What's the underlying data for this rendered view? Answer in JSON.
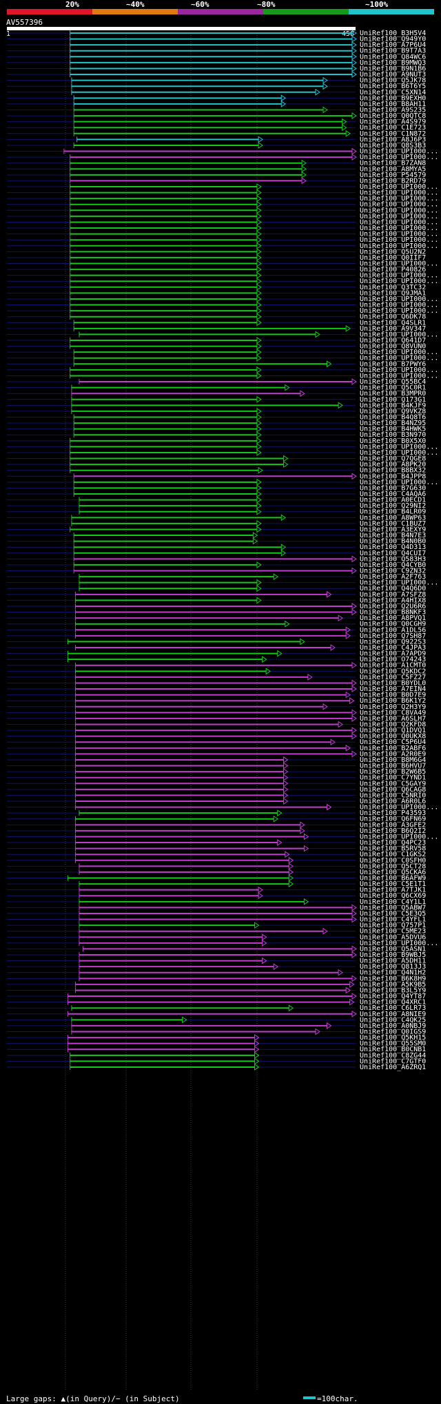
{
  "legend": {
    "labels": [
      "20%",
      "~40%",
      "~60%",
      "~80%",
      "~100%"
    ],
    "colors": [
      "#e01628",
      "#e07a10",
      "#9b27a0",
      "#159a1a",
      "#22c4cc"
    ]
  },
  "query": {
    "name": "AV557396",
    "start": "1",
    "end": "458"
  },
  "footer": {
    "gaps_text": "Large gaps: ▲(in Query)/− (in Subject)",
    "scale_text": "=100char."
  },
  "chart_data": {
    "type": "alignment-overview",
    "query_length": 458,
    "colors": {
      "cyan": "#22c4cc",
      "green": "#16c81a",
      "magenta": "#c23ccf"
    },
    "hits": [
      [
        "UniRef100_B3H5V4",
        "cyan",
        83,
        458
      ],
      [
        "UniRef100_Q949Y0",
        "cyan",
        83,
        458
      ],
      [
        "UniRef100_A7P6U4",
        "cyan",
        83,
        458
      ],
      [
        "UniRef100_B9T7A3",
        "cyan",
        83,
        458
      ],
      [
        "UniRef100_Q84WC6",
        "cyan",
        83,
        458
      ],
      [
        "UniRef100_B9MWQ3",
        "cyan",
        83,
        458
      ],
      [
        "UniRef100_B9N1B6",
        "cyan",
        83,
        458
      ],
      [
        "UniRef100_A9NUT3",
        "cyan",
        83,
        458
      ],
      [
        "UniRef100_Q5JK78",
        "cyan",
        85,
        420
      ],
      [
        "UniRef100_B6T6Y5",
        "cyan",
        85,
        420
      ],
      [
        "UniRef100_C5XN14",
        "cyan",
        85,
        410
      ],
      [
        "UniRef100_B9EXH0",
        "cyan",
        88,
        365
      ],
      [
        "UniRef100_B8AH11",
        "cyan",
        88,
        365
      ],
      [
        "UniRef100_A9S235",
        "green",
        88,
        420
      ],
      [
        "UniRef100_Q0QTC8",
        "green",
        88,
        458
      ],
      [
        "UniRef100_A4S979",
        "green",
        88,
        445
      ],
      [
        "UniRef100_C1E723",
        "green",
        88,
        445
      ],
      [
        "UniRef100_C1N872",
        "green",
        88,
        450
      ],
      [
        "UniRef100_A8J6P3",
        "cyan",
        92,
        335
      ],
      [
        "UniRef100_Q8S3B3",
        "green",
        88,
        335
      ],
      [
        "UniRef100_UPI000...",
        "magenta",
        75,
        458
      ],
      [
        "UniRef100_UPI000...",
        "magenta",
        83,
        458
      ],
      [
        "UniRef100_B7ZAN8",
        "green",
        83,
        392
      ],
      [
        "UniRef100_A8MYA5",
        "green",
        83,
        392
      ],
      [
        "UniRef100_P54579",
        "green",
        83,
        392
      ],
      [
        "UniRef100_B2RD79",
        "magenta",
        83,
        392
      ],
      [
        "UniRef100_UPI000...",
        "green",
        83,
        333
      ],
      [
        "UniRef100_UPI000...",
        "green",
        83,
        333
      ],
      [
        "UniRef100_UPI000...",
        "green",
        83,
        333
      ],
      [
        "UniRef100_UPI000...",
        "green",
        83,
        333
      ],
      [
        "UniRef100_UPI000...",
        "green",
        83,
        333
      ],
      [
        "UniRef100_UPI000...",
        "green",
        83,
        333
      ],
      [
        "UniRef100_UPI000...",
        "green",
        83,
        333
      ],
      [
        "UniRef100_UPI000...",
        "green",
        83,
        333
      ],
      [
        "UniRef100_UPI000...",
        "green",
        83,
        333
      ],
      [
        "UniRef100_UPI000...",
        "green",
        83,
        333
      ],
      [
        "UniRef100_UPI000...",
        "green",
        83,
        333
      ],
      [
        "UniRef100_Q5U2N2",
        "green",
        83,
        333
      ],
      [
        "UniRef100_Q0IIF7",
        "green",
        83,
        333
      ],
      [
        "UniRef100_UPI000...",
        "green",
        83,
        333
      ],
      [
        "UniRef100_P40826",
        "green",
        83,
        333
      ],
      [
        "UniRef100_UPI000...",
        "green",
        83,
        333
      ],
      [
        "UniRef100_UPI000...",
        "green",
        83,
        333
      ],
      [
        "UniRef100_Q3TC32",
        "green",
        83,
        333
      ],
      [
        "UniRef100_Q9JMA1",
        "green",
        83,
        333
      ],
      [
        "UniRef100_UPI000...",
        "green",
        83,
        333
      ],
      [
        "UniRef100_UPI000...",
        "green",
        83,
        333
      ],
      [
        "UniRef100_UPI000...",
        "green",
        83,
        333
      ],
      [
        "UniRef100_Q6DK78",
        "green",
        83,
        333
      ],
      [
        "UniRef100_Q4SLR1",
        "green",
        88,
        333
      ],
      [
        "UniRef100_A9V347",
        "green",
        88,
        450
      ],
      [
        "UniRef100_UPI000...",
        "green",
        95,
        410
      ],
      [
        "UniRef100_Q641D7",
        "green",
        83,
        333
      ],
      [
        "UniRef100_Q8VUN0",
        "green",
        83,
        333
      ],
      [
        "UniRef100_UPI000...",
        "green",
        88,
        333
      ],
      [
        "UniRef100_UPI000...",
        "green",
        88,
        333
      ],
      [
        "UniRef100_B7PWY6",
        "green",
        88,
        425
      ],
      [
        "UniRef100_UPI000...",
        "green",
        83,
        333
      ],
      [
        "UniRef100_UPI000...",
        "green",
        83,
        333
      ],
      [
        "UniRef100_Q55BC4",
        "magenta",
        95,
        458
      ],
      [
        "UniRef100_Q5C0R1",
        "green",
        85,
        370
      ],
      [
        "UniRef100_B3MPR0",
        "magenta",
        85,
        390
      ],
      [
        "UniRef100_Q173G1",
        "green",
        85,
        333
      ],
      [
        "UniRef100_B4KJF9",
        "green",
        85,
        440
      ],
      [
        "UniRef100_Q9VKZ8",
        "green",
        85,
        333
      ],
      [
        "UniRef100_B4Q8T6",
        "green",
        88,
        333
      ],
      [
        "UniRef100_B4NZ95",
        "green",
        88,
        333
      ],
      [
        "UniRef100_B4HWK5",
        "green",
        88,
        333
      ],
      [
        "UniRef100_B3N970",
        "green",
        88,
        333
      ],
      [
        "UniRef100_B0X5X0",
        "green",
        83,
        333
      ],
      [
        "UniRef100_UPI000...",
        "green",
        83,
        333
      ],
      [
        "UniRef100_UPI000...",
        "green",
        83,
        333
      ],
      [
        "UniRef100_Q7QGE8",
        "green",
        83,
        368
      ],
      [
        "UniRef100_A8PK20",
        "green",
        83,
        368
      ],
      [
        "UniRef100_B8BX32",
        "green",
        83,
        335
      ],
      [
        "UniRef100_B4JPP8",
        "magenta",
        88,
        458
      ],
      [
        "UniRef100_UPI000...",
        "green",
        88,
        333
      ],
      [
        "UniRef100_B7G630",
        "green",
        88,
        333
      ],
      [
        "UniRef100_C4AQA6",
        "green",
        88,
        333
      ],
      [
        "UniRef100_A0ECD1",
        "green",
        95,
        333
      ],
      [
        "UniRef100_Q29NI2",
        "green",
        95,
        333
      ],
      [
        "UniRef100_B4LR09",
        "green",
        95,
        333
      ],
      [
        "UniRef100_A8WP63",
        "green",
        85,
        365
      ],
      [
        "UniRef100_C1BUZ7",
        "green",
        85,
        333
      ],
      [
        "UniRef100_A3EXY9",
        "green",
        83,
        333
      ],
      [
        "UniRef100_B4N7E3",
        "green",
        88,
        328
      ],
      [
        "UniRef100_B4N0B0",
        "green",
        88,
        328
      ],
      [
        "UniRef100_Q4D313",
        "green",
        88,
        365
      ],
      [
        "UniRef100_Q4CUI7",
        "green",
        88,
        365
      ],
      [
        "UniRef100_Q583H3",
        "magenta",
        88,
        458
      ],
      [
        "UniRef100_Q4CYB0",
        "green",
        88,
        333
      ],
      [
        "UniRef100_C9ZN32",
        "magenta",
        88,
        458
      ],
      [
        "UniRef100_A2F763",
        "green",
        95,
        355
      ],
      [
        "UniRef100_UPI000...",
        "green",
        95,
        333
      ],
      [
        "UniRef100_Q4Q6D0",
        "green",
        95,
        333
      ],
      [
        "UniRef100_A7SFZ8",
        "magenta",
        90,
        425
      ],
      [
        "UniRef100_A4HIX8",
        "green",
        90,
        333
      ],
      [
        "UniRef100_Q2U6R6",
        "magenta",
        90,
        458
      ],
      [
        "UniRef100_B8NKF3",
        "magenta",
        90,
        458
      ],
      [
        "UniRef100_A8PVQ1",
        "magenta",
        90,
        440
      ],
      [
        "UniRef100_Q0CGH9",
        "green",
        90,
        370
      ],
      [
        "UniRef100_A1DL56",
        "magenta",
        90,
        450
      ],
      [
        "UniRef100_Q7SH87",
        "magenta",
        90,
        450
      ],
      [
        "UniRef100_Q922S3",
        "green",
        80,
        390
      ],
      [
        "UniRef100_C4JPA3",
        "magenta",
        90,
        430
      ],
      [
        "UniRef100_A7APD9",
        "green",
        80,
        360
      ],
      [
        "UniRef100_O74243",
        "green",
        80,
        340
      ],
      [
        "UniRef100_A1CMT0",
        "magenta",
        90,
        458
      ],
      [
        "UniRef100_Q5KDC2",
        "green",
        90,
        345
      ],
      [
        "UniRef100_C5FZ27",
        "magenta",
        90,
        400
      ],
      [
        "UniRef100_B0YDL0",
        "magenta",
        90,
        458
      ],
      [
        "UniRef100_A7EIN4",
        "magenta",
        90,
        458
      ],
      [
        "UniRef100_B0D7E9",
        "magenta",
        90,
        450
      ],
      [
        "UniRef100_B6K1Y2",
        "magenta",
        90,
        455
      ],
      [
        "UniRef100_Q2H3Y9",
        "magenta",
        90,
        420
      ],
      [
        "UniRef100_C8VA49",
        "magenta",
        90,
        458
      ],
      [
        "UniRef100_A6SLH7",
        "magenta",
        90,
        458
      ],
      [
        "UniRef100_Q2KFD8",
        "magenta",
        90,
        440
      ],
      [
        "UniRef100_Q1DVQ1",
        "magenta",
        90,
        458
      ],
      [
        "UniRef100_Q0UKX8",
        "magenta",
        90,
        458
      ],
      [
        "UniRef100_C5P6U4",
        "magenta",
        90,
        430
      ],
      [
        "UniRef100_B2ABF6",
        "magenta",
        90,
        450
      ],
      [
        "UniRef100_A2R0E9",
        "magenta",
        90,
        458
      ],
      [
        "UniRef100_B8M6G4",
        "magenta",
        90,
        368
      ],
      [
        "UniRef100_B6HVU7",
        "magenta",
        90,
        368
      ],
      [
        "UniRef100_B2W6B5",
        "magenta",
        90,
        368
      ],
      [
        "UniRef100_C7YND1",
        "magenta",
        90,
        368
      ],
      [
        "UniRef100_C5GAY9",
        "magenta",
        90,
        368
      ],
      [
        "UniRef100_Q6CAG8",
        "magenta",
        90,
        368
      ],
      [
        "UniRef100_C5NRI0",
        "magenta",
        90,
        368
      ],
      [
        "UniRef100_A6R0L6",
        "magenta",
        90,
        368
      ],
      [
        "UniRef100_UPI000...",
        "magenta",
        90,
        425
      ],
      [
        "UniRef100_P43593",
        "green",
        95,
        360
      ],
      [
        "UniRef100_Q6FN69",
        "green",
        90,
        355
      ],
      [
        "UniRef100_A3GFE2",
        "magenta",
        90,
        390
      ],
      [
        "UniRef100_B6Q2I2",
        "magenta",
        90,
        390
      ],
      [
        "UniRef100_UPI000...",
        "magenta",
        90,
        395
      ],
      [
        "UniRef100_Q4PC23",
        "magenta",
        90,
        360
      ],
      [
        "UniRef100_B5RV58",
        "magenta",
        90,
        395
      ],
      [
        "UniRef100_C1GKS2",
        "magenta",
        90,
        370
      ],
      [
        "UniRef100_C0SFH0",
        "magenta",
        90,
        375
      ],
      [
        "UniRef100_Q5CT28",
        "magenta",
        95,
        375
      ],
      [
        "UniRef100_Q5CKA6",
        "magenta",
        95,
        375
      ],
      [
        "UniRef100_B6AFW9",
        "green",
        80,
        375
      ],
      [
        "UniRef100_C5E1T1",
        "green",
        95,
        375
      ],
      [
        "UniRef100_A7TJK1",
        "magenta",
        95,
        335
      ],
      [
        "UniRef100_Q6CX69",
        "magenta",
        95,
        335
      ],
      [
        "UniRef100_C4Y1L1",
        "green",
        95,
        395
      ],
      [
        "UniRef100_Q5ABW7",
        "magenta",
        95,
        458
      ],
      [
        "UniRef100_C5E3Q5",
        "magenta",
        95,
        458
      ],
      [
        "UniRef100_C4YFL1",
        "magenta",
        95,
        458
      ],
      [
        "UniRef100_Q757P1",
        "green",
        95,
        330
      ],
      [
        "UniRef100_C5ME23",
        "magenta",
        95,
        420
      ],
      [
        "UniRef100_A5DVU6",
        "magenta",
        95,
        340
      ],
      [
        "UniRef100_UPI000...",
        "magenta",
        95,
        340
      ],
      [
        "UniRef100_Q5ASN1",
        "magenta",
        100,
        458
      ],
      [
        "UniRef100_B9WBJ5",
        "magenta",
        95,
        458
      ],
      [
        "UniRef100_A5DH11",
        "magenta",
        95,
        340
      ],
      [
        "UniRef100_Q813J3",
        "magenta",
        95,
        355
      ],
      [
        "UniRef100_Q4N1H2",
        "magenta",
        95,
        440
      ],
      [
        "UniRef100_B6K8H9",
        "magenta",
        95,
        458
      ],
      [
        "UniRef100_A5K9B5",
        "magenta",
        90,
        455
      ],
      [
        "UniRef100_B3L5Y9",
        "magenta",
        90,
        450
      ],
      [
        "UniRef100_Q4YT87",
        "magenta",
        80,
        458
      ],
      [
        "UniRef100_Q4XRC1",
        "magenta",
        80,
        455
      ],
      [
        "UniRef100_C6LR73",
        "green",
        85,
        375
      ],
      [
        "UniRef100_A8NIE9",
        "magenta",
        80,
        458
      ],
      [
        "UniRef100_C4QK25",
        "green",
        85,
        235
      ],
      [
        "UniRef100_A0NBJ9",
        "magenta",
        85,
        425
      ],
      [
        "UniRef100_Q0IGS9",
        "magenta",
        85,
        410
      ],
      [
        "UniRef100_Q5KH15",
        "magenta",
        80,
        330
      ],
      [
        "UniRef100_Q55SM0",
        "magenta",
        80,
        330
      ],
      [
        "UniRef100_B0CNB1",
        "magenta",
        80,
        330
      ],
      [
        "UniRef100_C8ZG44",
        "green",
        83,
        330
      ],
      [
        "UniRef100_C7GTF0",
        "green",
        83,
        330
      ],
      [
        "UniRef100_A6ZRQ1",
        "green",
        83,
        330
      ]
    ]
  }
}
